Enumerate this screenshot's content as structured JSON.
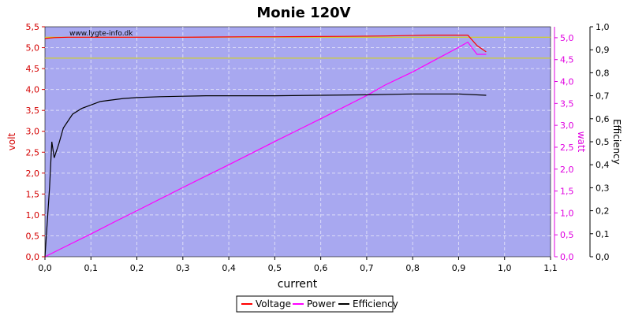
{
  "chart_data": {
    "type": "line",
    "title": "Monie 120V",
    "watermark": "www.lygte-info.dk",
    "xlabel": "current",
    "xlim": [
      0,
      1.1
    ],
    "xticks": [
      0,
      0.1,
      0.2,
      0.3,
      0.4,
      0.5,
      0.6,
      0.7,
      0.8,
      0.9,
      1.0,
      1.1
    ],
    "xtick_labels": [
      "0,0",
      "0,1",
      "0,2",
      "0,3",
      "0,4",
      "0,5",
      "0,6",
      "0,7",
      "0,8",
      "0,9",
      "1,0",
      "1,1"
    ],
    "axes": {
      "left": {
        "label": "volt",
        "color": "#d40000",
        "lim": [
          0,
          5.5
        ],
        "ticks": [
          0,
          0.5,
          1,
          1.5,
          2,
          2.5,
          3,
          3.5,
          4,
          4.5,
          5,
          5.5
        ],
        "tick_labels": [
          "0,0",
          "0,5",
          "1,0",
          "1,5",
          "2,0",
          "2,5",
          "3,0",
          "3,5",
          "4,0",
          "4,5",
          "5,0",
          "5,5"
        ]
      },
      "right1": {
        "label": "watt",
        "color": "#e000e0",
        "lim": [
          0,
          5.25
        ],
        "ticks": [
          0,
          0.5,
          1,
          1.5,
          2,
          2.5,
          3,
          3.5,
          4,
          4.5,
          5
        ],
        "tick_labels": [
          "0,0",
          "0,5",
          "1,0",
          "1,5",
          "2,0",
          "2,5",
          "3,0",
          "3,5",
          "4,0",
          "4,5",
          "5,0"
        ]
      },
      "right2": {
        "label": "Efficiency",
        "color": "#000000",
        "lim": [
          0,
          1.0
        ],
        "ticks": [
          0,
          0.1,
          0.2,
          0.3,
          0.4,
          0.5,
          0.6,
          0.7,
          0.8,
          0.9,
          1.0
        ],
        "tick_labels": [
          "0,0",
          "0,1",
          "0,2",
          "0,3",
          "0,4",
          "0,5",
          "0,6",
          "0,7",
          "0,8",
          "0,9",
          "1,0"
        ]
      }
    },
    "reference_lines": [
      {
        "axis": "left",
        "value": 5.25,
        "color": "#d8d800"
      },
      {
        "axis": "left",
        "value": 4.75,
        "color": "#d8d800"
      }
    ],
    "grid": true,
    "legend_position": "bottom-center",
    "series": [
      {
        "name": "Voltage",
        "axis": "left",
        "color": "#ff0000",
        "x": [
          0,
          0.02,
          0.05,
          0.1,
          0.2,
          0.3,
          0.44,
          0.5,
          0.65,
          0.74,
          0.84,
          0.9,
          0.92,
          0.94,
          0.96
        ],
        "y": [
          5.22,
          5.24,
          5.25,
          5.25,
          5.25,
          5.25,
          5.26,
          5.26,
          5.27,
          5.28,
          5.3,
          5.3,
          5.3,
          5.05,
          4.9
        ]
      },
      {
        "name": "Power",
        "axis": "right1",
        "color": "#ff00ff",
        "x": [
          0,
          0.05,
          0.1,
          0.15,
          0.2,
          0.3,
          0.4,
          0.5,
          0.6,
          0.7,
          0.74,
          0.8,
          0.85,
          0.9,
          0.92,
          0.94,
          0.96
        ],
        "y": [
          0,
          0.26,
          0.52,
          0.79,
          1.05,
          1.58,
          2.1,
          2.63,
          3.15,
          3.68,
          3.92,
          4.22,
          4.5,
          4.78,
          4.9,
          4.62,
          4.62
        ]
      },
      {
        "name": "Efficiency",
        "axis": "right2",
        "color": "#000000",
        "x": [
          0,
          0.01,
          0.015,
          0.02,
          0.03,
          0.04,
          0.06,
          0.08,
          0.1,
          0.12,
          0.14,
          0.17,
          0.2,
          0.25,
          0.3,
          0.35,
          0.4,
          0.5,
          0.6,
          0.7,
          0.8,
          0.9,
          0.96
        ],
        "y": [
          0,
          0.3,
          0.5,
          0.43,
          0.49,
          0.56,
          0.62,
          0.645,
          0.66,
          0.675,
          0.68,
          0.688,
          0.692,
          0.696,
          0.698,
          0.7,
          0.7,
          0.7,
          0.702,
          0.704,
          0.708,
          0.708,
          0.702
        ]
      }
    ]
  }
}
